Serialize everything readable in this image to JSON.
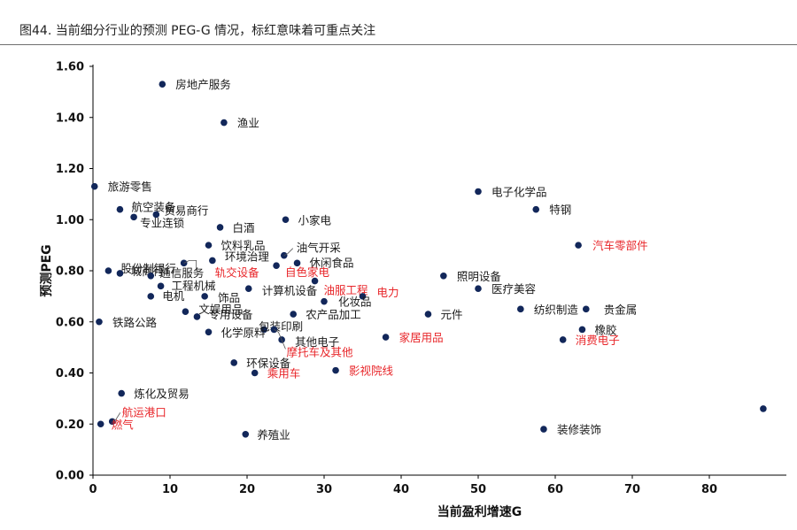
{
  "figure": {
    "title": "图44. 当前细分行业的预测 PEG-G 情况，标红意味着可重点关注"
  },
  "colors": {
    "point": "#12275a",
    "normal_label": "#1a1a1a",
    "highlight_label": "#e8262a",
    "axis": "#000000",
    "leader": "#555555"
  },
  "chart_data": {
    "type": "scatter",
    "title": "",
    "xlabel": "当前盈利增速G",
    "ylabel": "预测PEG",
    "xlim": [
      0,
      90
    ],
    "ylim": [
      0,
      1.6
    ],
    "xticks": [
      "0",
      "10",
      "20",
      "30",
      "40",
      "50",
      "60",
      "70",
      "80"
    ],
    "yticks": [
      "0.00",
      "0.20",
      "0.40",
      "0.60",
      "0.80",
      "1.00",
      "1.20",
      "1.40",
      "1.60"
    ],
    "grid": false,
    "points": [
      {
        "label": "房地产服务",
        "x": 9.0,
        "y": 1.53,
        "highlight": false
      },
      {
        "label": "渔业",
        "x": 17.0,
        "y": 1.38,
        "highlight": false
      },
      {
        "label": "旅游零售",
        "x": 0.2,
        "y": 1.13,
        "highlight": false
      },
      {
        "label": "电子化学品",
        "x": 50.0,
        "y": 1.11,
        "highlight": false
      },
      {
        "label": "特钢",
        "x": 57.5,
        "y": 1.04,
        "highlight": false
      },
      {
        "label": "航空装备",
        "x": 3.5,
        "y": 1.04,
        "highlight": false
      },
      {
        "label": "贸易商行",
        "x": 8.2,
        "y": 1.02,
        "highlight": false
      },
      {
        "label": "专业连锁",
        "x": 5.3,
        "y": 1.01,
        "highlight": false
      },
      {
        "label": "小家电",
        "x": 25.0,
        "y": 1.0,
        "highlight": false
      },
      {
        "label": "白酒",
        "x": 16.5,
        "y": 0.97,
        "highlight": false
      },
      {
        "label": "饮料乳品",
        "x": 15.0,
        "y": 0.9,
        "highlight": false
      },
      {
        "label": "油气开采",
        "x": 24.8,
        "y": 0.86,
        "highlight": false
      },
      {
        "label": "汽车零部件",
        "x": 63.0,
        "y": 0.9,
        "highlight": true
      },
      {
        "label": "环境治理",
        "x": 15.5,
        "y": 0.84,
        "highlight": false
      },
      {
        "label": "休闲食品",
        "x": 26.5,
        "y": 0.83,
        "highlight": false
      },
      {
        "label": "轨交设备",
        "x": 11.8,
        "y": 0.83,
        "highlight": true
      },
      {
        "label": "自色家电",
        "x": 23.8,
        "y": 0.82,
        "highlight": true
      },
      {
        "label": "股份制银行",
        "x": 2.0,
        "y": 0.8,
        "highlight": false
      },
      {
        "label": "城商行",
        "x": 3.5,
        "y": 0.79,
        "highlight": false
      },
      {
        "label": "通信服务",
        "x": 7.5,
        "y": 0.78,
        "highlight": false
      },
      {
        "label": "照明设备",
        "x": 45.5,
        "y": 0.78,
        "highlight": false
      },
      {
        "label": "油服工程",
        "x": 28.8,
        "y": 0.76,
        "highlight": true
      },
      {
        "label": "工程机械",
        "x": 8.8,
        "y": 0.74,
        "highlight": false
      },
      {
        "label": "计算机设备",
        "x": 20.2,
        "y": 0.73,
        "highlight": false
      },
      {
        "label": "医疗美容",
        "x": 50.0,
        "y": 0.73,
        "highlight": false
      },
      {
        "label": "电力",
        "x": 35.0,
        "y": 0.7,
        "highlight": true
      },
      {
        "label": "电机",
        "x": 7.5,
        "y": 0.7,
        "highlight": false
      },
      {
        "label": "饰品",
        "x": 14.5,
        "y": 0.7,
        "highlight": false
      },
      {
        "label": "化妆品",
        "x": 30.0,
        "y": 0.68,
        "highlight": false
      },
      {
        "label": "纺织制造",
        "x": 55.5,
        "y": 0.65,
        "highlight": false
      },
      {
        "label": "贵金属",
        "x": 64.0,
        "y": 0.65,
        "highlight": false
      },
      {
        "label": "文娱用品",
        "x": 12.0,
        "y": 0.64,
        "highlight": false
      },
      {
        "label": "农产品加工",
        "x": 26.0,
        "y": 0.63,
        "highlight": false
      },
      {
        "label": "元件",
        "x": 43.5,
        "y": 0.63,
        "highlight": false
      },
      {
        "label": "专用设备",
        "x": 13.5,
        "y": 0.62,
        "highlight": false
      },
      {
        "label": "铁路公路",
        "x": 0.8,
        "y": 0.6,
        "highlight": false
      },
      {
        "label": "包装印刷",
        "x": 22.2,
        "y": 0.57,
        "highlight": false
      },
      {
        "label": "橡胶",
        "x": 63.5,
        "y": 0.57,
        "highlight": false
      },
      {
        "label": "化学原料",
        "x": 15.0,
        "y": 0.56,
        "highlight": false
      },
      {
        "label": "家居用品",
        "x": 38.0,
        "y": 0.54,
        "highlight": true
      },
      {
        "label": "消费电子",
        "x": 61.0,
        "y": 0.53,
        "highlight": true
      },
      {
        "label": "其他电子",
        "x": 24.5,
        "y": 0.53,
        "highlight": false
      },
      {
        "label": "摩托车及其他",
        "x": 23.5,
        "y": 0.57,
        "highlight": true
      },
      {
        "label": "环保设备",
        "x": 18.3,
        "y": 0.44,
        "highlight": false
      },
      {
        "label": "影视院线",
        "x": 31.5,
        "y": 0.41,
        "highlight": true
      },
      {
        "label": "乘用车",
        "x": 21.0,
        "y": 0.4,
        "highlight": true
      },
      {
        "label": "炼化及贸易",
        "x": 3.7,
        "y": 0.32,
        "highlight": false
      },
      {
        "label": "航运港口",
        "x": 2.5,
        "y": 0.21,
        "highlight": true
      },
      {
        "label": "燃气",
        "x": 1.0,
        "y": 0.2,
        "highlight": true
      },
      {
        "label": "装修装饰",
        "x": 58.5,
        "y": 0.18,
        "highlight": false
      },
      {
        "label": "养殖业",
        "x": 19.8,
        "y": 0.16,
        "highlight": false
      },
      {
        "label": "",
        "x": 87.0,
        "y": 0.26,
        "highlight": false
      }
    ]
  }
}
